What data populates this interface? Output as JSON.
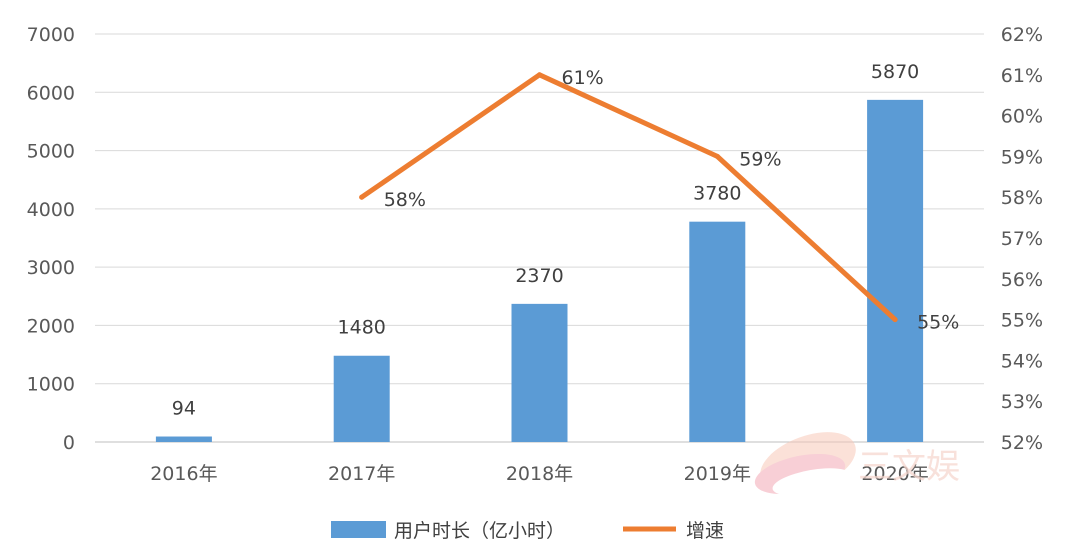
{
  "chart_data": {
    "type": "bar",
    "categories": [
      "2016年",
      "2017年",
      "2018年",
      "2019年",
      "2020年"
    ],
    "series": [
      {
        "name": "用户时长（亿小时）",
        "type": "bar",
        "axis": "left",
        "color": "#5b9bd5",
        "values": [
          94,
          1480,
          2370,
          3780,
          5870
        ],
        "labels": [
          "94",
          "1480",
          "2370",
          "3780",
          "5870"
        ]
      },
      {
        "name": "增速",
        "type": "line",
        "axis": "right",
        "color": "#ed7d31",
        "values": [
          null,
          58,
          61,
          59,
          55
        ],
        "labels": [
          "",
          "58%",
          "61%",
          "59%",
          "55%"
        ]
      }
    ],
    "y_left": {
      "range": [
        0,
        7000
      ],
      "ticks": [
        0,
        1000,
        2000,
        3000,
        4000,
        5000,
        6000,
        7000
      ],
      "tick_labels": [
        "0",
        "1000",
        "2000",
        "3000",
        "4000",
        "5000",
        "6000",
        "7000"
      ]
    },
    "y_right": {
      "range": [
        52,
        62
      ],
      "ticks": [
        52,
        53,
        54,
        55,
        56,
        57,
        58,
        59,
        60,
        61,
        62
      ],
      "tick_labels": [
        "52%",
        "53%",
        "54%",
        "55%",
        "56%",
        "57%",
        "58%",
        "59%",
        "60%",
        "61%",
        "62%"
      ]
    },
    "grid": true,
    "legend_position": "bottom",
    "title": "",
    "xlabel": "",
    "ylabel": ""
  },
  "watermark": {
    "text": "三文娱"
  },
  "colors": {
    "grid": "#d9d9d9",
    "axis": "#bfbfbf",
    "watermark": "#f6d7cf"
  }
}
